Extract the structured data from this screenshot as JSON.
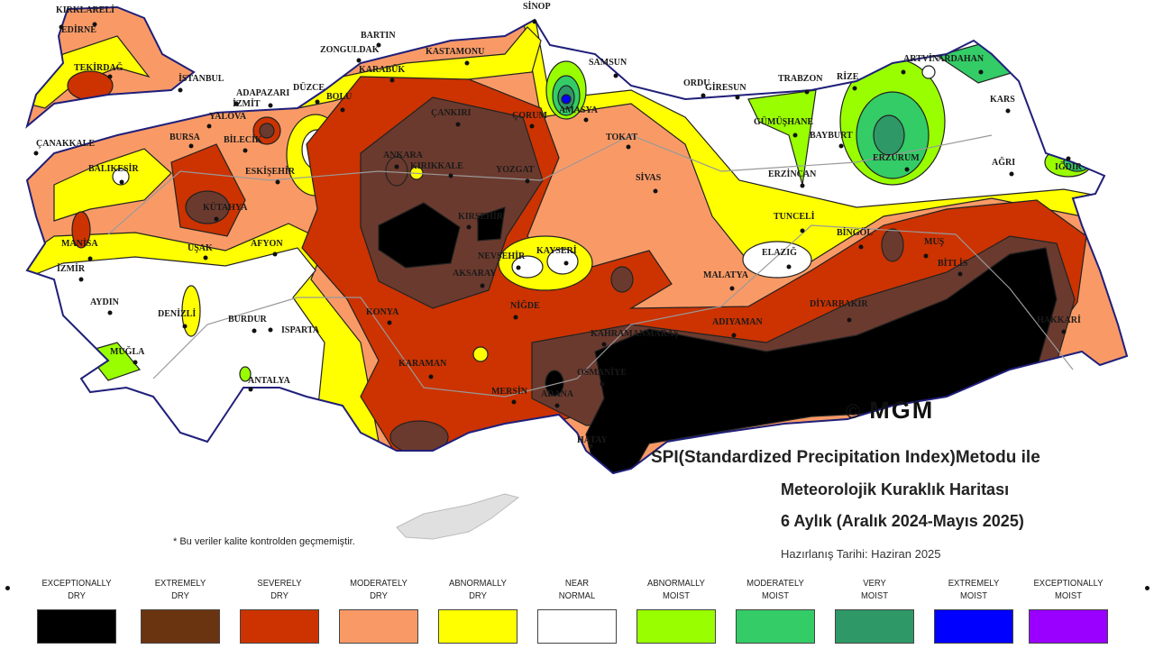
{
  "title": {
    "line1": "SPI(Standardized Precipitation Index)Metodu ile",
    "line2": "Meteorolojik Kuraklık Haritası",
    "line3": "6 Aylık (Aralık 2024-Mayıs 2025)",
    "date": "Hazırlanış Tarihi: Haziran 2025"
  },
  "logo": {
    "copyright": "©",
    "text": "MGM"
  },
  "note": "* Bu veriler kalite kontrolden geçmemiştir.",
  "legend": [
    {
      "line1": "EXCEPTIONALLY",
      "line2": "DRY",
      "color": "#000000"
    },
    {
      "line1": "EXTREMELY",
      "line2": "DRY",
      "color": "#6b3410"
    },
    {
      "line1": "SEVERELY",
      "line2": "DRY",
      "color": "#cc3300"
    },
    {
      "line1": "MODERATELY",
      "line2": "DRY",
      "color": "#f99a66"
    },
    {
      "line1": "ABNORMALLY",
      "line2": "DRY",
      "color": "#ffff00"
    },
    {
      "line1": "NEAR",
      "line2": "NORMAL",
      "color": "#ffffff"
    },
    {
      "line1": "ABNORMALLY",
      "line2": "MOIST",
      "color": "#99ff00"
    },
    {
      "line1": "MODERATELY",
      "line2": "MOIST",
      "color": "#33cc66"
    },
    {
      "line1": "VERY",
      "line2": "MOIST",
      "color": "#2e9966"
    },
    {
      "line1": "EXTREMELY",
      "line2": "MOIST",
      "color": "#0000ff"
    },
    {
      "line1": "EXCEPTIONALLY",
      "line2": "MOIST",
      "color": "#9900ff"
    }
  ],
  "cities": [
    "KIRKLARELİ",
    "EDİRNE",
    "TEKİRDAĞ",
    "İSTANBUL",
    "ADAPAZARI",
    "DÜZCE",
    "BOLU",
    "YALOVA",
    "İZMİT",
    "BURSA",
    "BİLECİK",
    "ÇANAKKALE",
    "BALIKESİR",
    "ESKİŞEHİR",
    "KÜTAHYA",
    "ZONGULDAK",
    "BARTIN",
    "KARABÜK",
    "KASTAMONU",
    "SİNOP",
    "ÇANKIRI",
    "ÇORUM",
    "AMASYA",
    "SAMSUN",
    "TOKAT",
    "ANKARA",
    "KIRIKKALE",
    "YOZGAT",
    "SİVAS",
    "ORDU",
    "GİRESUN",
    "TRABZON",
    "RİZE",
    "GÜMÜŞHANE",
    "BAYBURT",
    "ERZURUM",
    "ERZİNCAN",
    "ARTVİN",
    "ARDAHAN",
    "KARS",
    "AĞRI",
    "IĞDIR",
    "MANİSA",
    "İZMİR",
    "UŞAK",
    "AFYON",
    "AYDIN",
    "DENİZLİ",
    "BURDUR",
    "ISPARTA",
    "MUĞLA",
    "ANTALYA",
    "KONYA",
    "KARAMAN",
    "MERSİN",
    "ADANA",
    "OSMANİYE",
    "NİĞDE",
    "AKSARAY",
    "NEVŞEHİR",
    "KAYSERİ",
    "KIRŞEHİR",
    "TUNCELİ",
    "BİNGÖL",
    "MUŞ",
    "BİTLİS",
    "ELAZIĞ",
    "MALATYA",
    "DİYARBAKIR",
    "ADIYAMAN",
    "KAHRAMANMARAŞ",
    "HAKKARİ",
    "HATAY"
  ]
}
